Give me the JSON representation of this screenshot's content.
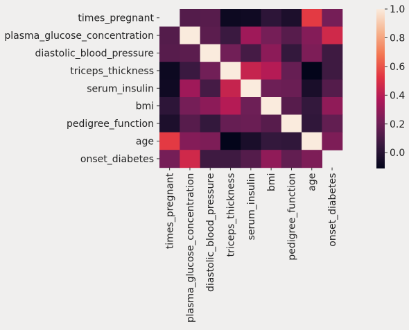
{
  "chart_data": {
    "type": "heatmap",
    "title": "",
    "xlabel": "",
    "ylabel": "",
    "rows": [
      "times_pregnant",
      "plasma_glucose_concentration",
      "diastolic_blood_pressure",
      "triceps_thickness",
      "serum_insulin",
      "bmi",
      "pedigree_function",
      "age",
      "onset_diabetes"
    ],
    "columns": [
      "times_pregnant",
      "plasma_glucose_concentration",
      "diastolic_blood_pressure",
      "triceps_thickness",
      "serum_insulin",
      "bmi",
      "pedigree_function",
      "age",
      "onset_diabetes"
    ],
    "values": [
      [
        null,
        0.13,
        0.14,
        -0.08,
        -0.07,
        0.02,
        -0.03,
        0.54,
        0.22
      ],
      [
        0.13,
        1.0,
        0.15,
        0.06,
        0.33,
        0.22,
        0.14,
        0.26,
        0.47
      ],
      [
        0.14,
        0.15,
        1.0,
        0.21,
        0.09,
        0.28,
        0.04,
        0.24,
        0.07
      ],
      [
        -0.08,
        0.06,
        0.21,
        1.0,
        0.44,
        0.39,
        0.18,
        -0.11,
        0.07
      ],
      [
        -0.07,
        0.33,
        0.09,
        0.44,
        1.0,
        0.2,
        0.19,
        -0.04,
        0.13
      ],
      [
        0.02,
        0.22,
        0.28,
        0.39,
        0.2,
        1.0,
        0.14,
        0.04,
        0.29
      ],
      [
        -0.03,
        0.14,
        0.04,
        0.18,
        0.19,
        0.14,
        1.0,
        0.03,
        0.17
      ],
      [
        0.54,
        0.26,
        0.24,
        -0.11,
        -0.04,
        0.04,
        0.03,
        1.0,
        0.24
      ],
      [
        0.22,
        0.47,
        0.07,
        0.07,
        0.13,
        0.29,
        0.17,
        0.24,
        null
      ]
    ],
    "vmin": -0.11,
    "vmax": 1.0,
    "colorbar": {
      "ticks": [
        -0.0,
        0.2,
        0.4,
        0.6,
        0.8,
        1.0
      ],
      "tick_labels": [
        "0.0",
        "0.2",
        "0.4",
        "0.6",
        "0.8",
        "1.0"
      ]
    },
    "colormap": [
      "#03051a",
      "#36193e",
      "#701f57",
      "#ad1759",
      "#e13342",
      "#f37651",
      "#f6b48f",
      "#faebdd"
    ],
    "background": "#f0efee",
    "grid": false,
    "legend": "colorbar-right"
  }
}
